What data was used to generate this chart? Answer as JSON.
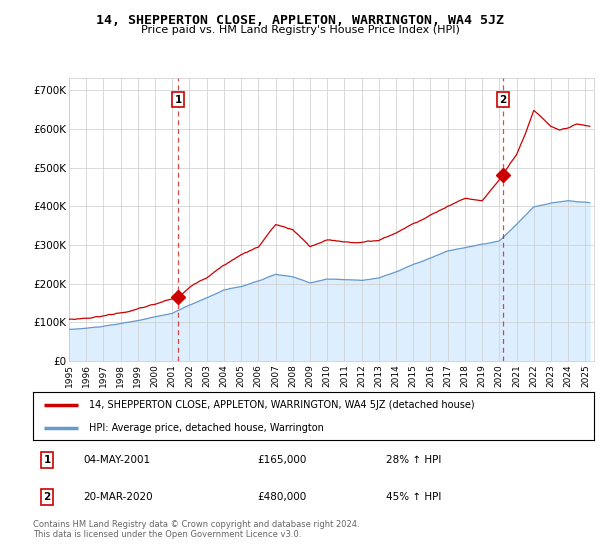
{
  "title": "14, SHEPPERTON CLOSE, APPLETON, WARRINGTON, WA4 5JZ",
  "subtitle": "Price paid vs. HM Land Registry's House Price Index (HPI)",
  "property_label": "14, SHEPPERTON CLOSE, APPLETON, WARRINGTON, WA4 5JZ (detached house)",
  "hpi_label": "HPI: Average price, detached house, Warrington",
  "property_color": "#cc0000",
  "hpi_color": "#6699cc",
  "hpi_fill_color": "#ddeeff",
  "background_color": "#ffffff",
  "grid_color": "#cccccc",
  "sale1_date": "04-MAY-2001",
  "sale1_price": "£165,000",
  "sale1_hpi": "28% ↑ HPI",
  "sale2_date": "20-MAR-2020",
  "sale2_price": "£480,000",
  "sale2_hpi": "45% ↑ HPI",
  "yticks": [
    0,
    100,
    200,
    300,
    400,
    500,
    600,
    700
  ],
  "ylim": [
    0,
    730000
  ],
  "xlim_start": 1995.0,
  "xlim_end": 2025.5,
  "sale1_x": 2001.33,
  "sale1_y": 165000,
  "sale2_x": 2020.21,
  "sale2_y": 480000,
  "footer": "Contains HM Land Registry data © Crown copyright and database right 2024.\nThis data is licensed under the Open Government Licence v3.0."
}
